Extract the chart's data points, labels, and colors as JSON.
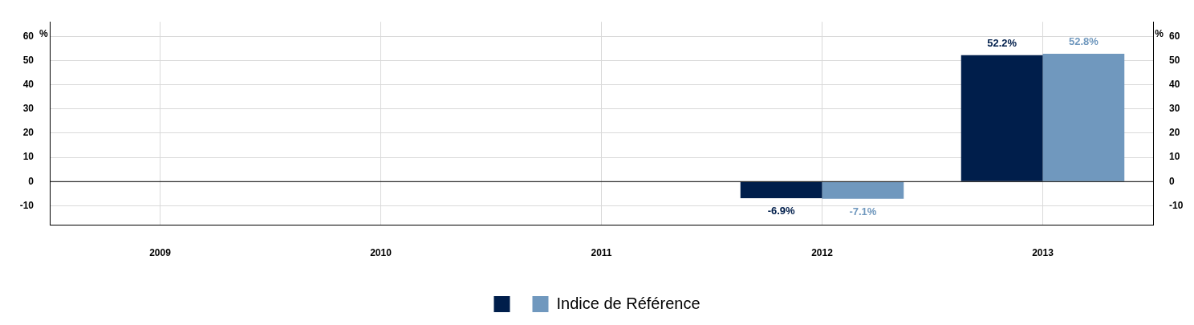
{
  "chart_data": {
    "type": "bar",
    "ylabel": "%",
    "y2label": "%",
    "categories": [
      "2009",
      "2010",
      "2011",
      "2012",
      "2013"
    ],
    "series": [
      {
        "color": "#001e4b",
        "values": [
          null,
          null,
          null,
          -6.9,
          52.2
        ],
        "value_labels": [
          null,
          null,
          null,
          "-6.9%",
          "52.2%"
        ]
      },
      {
        "name": "Indice de Référence",
        "color": "#7098be",
        "values": [
          null,
          null,
          null,
          -7.1,
          52.8
        ],
        "value_labels": [
          null,
          null,
          null,
          "-7.1%",
          "52.8%"
        ]
      }
    ],
    "ylim": [
      -18,
      66
    ],
    "yticks": [
      -10,
      0,
      10,
      20,
      30,
      40,
      50,
      60
    ],
    "y2lim": [
      -18,
      66
    ],
    "y2ticks": [
      -10,
      0,
      10,
      20,
      30,
      40,
      50,
      60
    ],
    "ref_lines": [
      {
        "axis": "y",
        "value": 0,
        "color": "#000000"
      }
    ],
    "grid": true,
    "legend": "bottom"
  }
}
